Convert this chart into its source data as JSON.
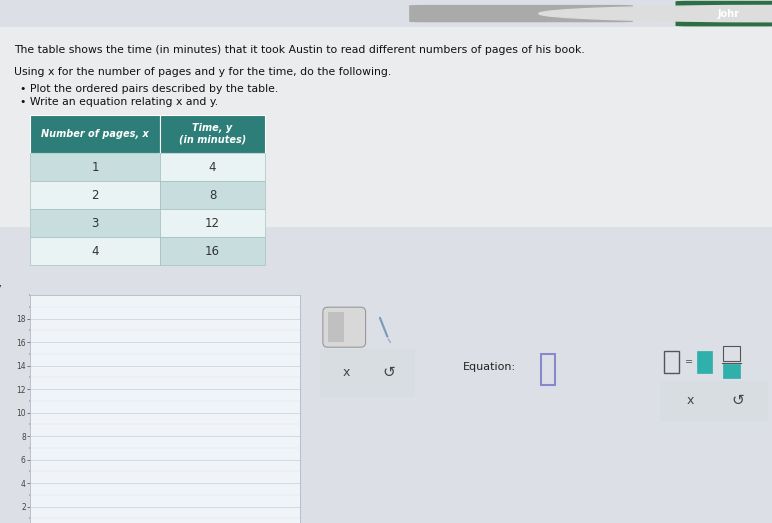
{
  "title_text": "The table shows the time (in minutes) that it took Austin to read different numbers of pages of his book.",
  "subtitle_text": "Using x for the number of pages and y for the time, do the following.",
  "bullet1": "Plot the ordered pairs described by the table.",
  "bullet2": "Write an equation relating x and y.",
  "table_header_col1": "Number of pages, x",
  "table_header_col2": "Time, y\n(in minutes)",
  "table_data": [
    [
      1,
      4
    ],
    [
      2,
      8
    ],
    [
      3,
      12
    ],
    [
      4,
      16
    ]
  ],
  "table_header_bg": "#2d7d78",
  "table_header_fg": "#ffffff",
  "table_row_bg_odd": "#c8dede",
  "table_row_bg_even": "#eaf3f3",
  "graph_bg": "#f0f4f8",
  "graph_border": "#b0b8c8",
  "graph_grid_major": "#c5d0dc",
  "graph_grid_minor": "#dde5ee",
  "graph_yticks_major": [
    2,
    4,
    6,
    8,
    10,
    12,
    14,
    16,
    18
  ],
  "graph_ylim": [
    0,
    20
  ],
  "graph_xlim": [
    0,
    18
  ],
  "graph_ylabel": "y",
  "equation_label": "Equation:",
  "equation_box_border": "#8888cc",
  "bg_color": "#dce0e6",
  "panel_border": "#cccccc",
  "top_bar_color": "#5cb87a",
  "top_bar_right_color": "#2d6e45",
  "johr_text": "Johr"
}
